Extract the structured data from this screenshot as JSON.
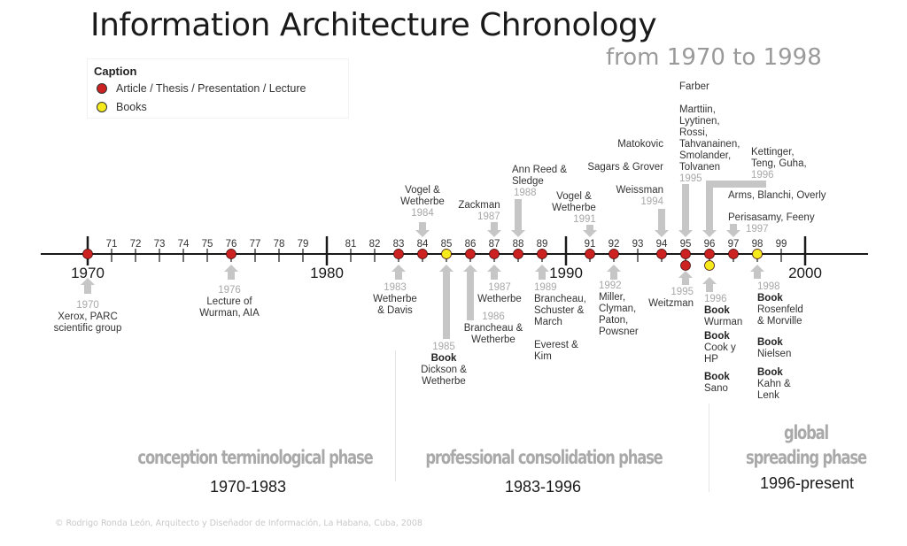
{
  "title": "Information Architecture Chronology",
  "subtitle": "from 1970 to 1998",
  "legend": {
    "title": "Caption",
    "items": [
      {
        "label": "Article / Thesis / Presentation / Lecture",
        "type": "article",
        "color": "#cc2222"
      },
      {
        "label": "Books",
        "type": "book",
        "color": "#f4ea1c"
      }
    ]
  },
  "colors": {
    "article": "#cc2222",
    "book": "#f4ea1c",
    "arrow": "#c6c6c6",
    "axis": "#1a1a1a",
    "year_label": "#a8a8a8"
  },
  "axis": {
    "start": 1970,
    "end": 2000,
    "decade_labels": [
      "1970",
      "1980",
      "1990",
      "2000"
    ],
    "minor_labels": [
      "71",
      "72",
      "73",
      "74",
      "75",
      "76",
      "77",
      "78",
      "79",
      "81",
      "82",
      "83",
      "84",
      "85",
      "86",
      "87",
      "88",
      "89",
      "91",
      "92",
      "93",
      "94",
      "95",
      "96",
      "97",
      "98",
      "99"
    ]
  },
  "markers": [
    {
      "year": 1970,
      "type": "article"
    },
    {
      "year": 1976,
      "type": "article"
    },
    {
      "year": 1983,
      "type": "article"
    },
    {
      "year": 1984,
      "type": "article"
    },
    {
      "year": 1985,
      "type": "book"
    },
    {
      "year": 1986,
      "type": "article"
    },
    {
      "year": 1987,
      "type": "article"
    },
    {
      "year": 1988,
      "type": "article"
    },
    {
      "year": 1989,
      "type": "article"
    },
    {
      "year": 1991,
      "type": "article"
    },
    {
      "year": 1992,
      "type": "article"
    },
    {
      "year": 1994,
      "type": "article"
    },
    {
      "year": 1995,
      "type": "article"
    },
    {
      "year": 1995,
      "type": "article",
      "stacked": true
    },
    {
      "year": 1996,
      "type": "article"
    },
    {
      "year": 1996,
      "type": "book",
      "stacked": true
    },
    {
      "year": 1997,
      "type": "article"
    },
    {
      "year": 1998,
      "type": "book"
    }
  ],
  "events_above": [
    {
      "year_label": "1984",
      "lines": [
        "Vogel &",
        "Wetherbe"
      ]
    },
    {
      "year_label": "1987",
      "lines": [
        "Zackman"
      ]
    },
    {
      "year_label": "1988",
      "lines": [
        "Ann Reed &",
        "Sledge"
      ]
    },
    {
      "year_label": "1991",
      "lines": [
        "Vogel &",
        "Wetherbe"
      ]
    },
    {
      "year_label": "1994",
      "lines": [
        "Matokovic",
        "Sagars & Grover",
        "Weissman"
      ]
    },
    {
      "year_label": "1995",
      "lines": [
        "Farber",
        "Marttiin,",
        "Lyytinen,",
        "Rossi,",
        "Tahvanainen,",
        "Smolander,",
        "Tolvanen"
      ]
    },
    {
      "year_label": "1996",
      "lines": [
        "Kettinger,",
        "Teng, Guha,"
      ]
    },
    {
      "year_label": "1997",
      "lines": [
        "Arms, Blanchi, Overly",
        "Perisasamy, Feeny"
      ]
    }
  ],
  "events_below": [
    {
      "year_label": "1970",
      "lines": [
        "Xerox, PARC",
        "scientific group"
      ]
    },
    {
      "year_label": "1976",
      "lines": [
        "Lecture of",
        "Wurman, AIA"
      ]
    },
    {
      "year_label": "1983",
      "lines": [
        "Wetherbe",
        "& Davis"
      ]
    },
    {
      "year_label": "1985",
      "book": "Book",
      "lines": [
        "Dickson &",
        "Wetherbe"
      ]
    },
    {
      "year_label": "1986",
      "lines": [
        "Brancheau &",
        "Wetherbe"
      ]
    },
    {
      "year_label": "1987",
      "lines": [
        "Wetherbe"
      ]
    },
    {
      "year_label": "1989",
      "lines": [
        "Brancheau,",
        "Schuster &",
        "March",
        "Everest &",
        "Kim"
      ]
    },
    {
      "year_label": "1992",
      "lines": [
        "Miller,",
        "Clyman,",
        "Paton,",
        "Powsner"
      ]
    },
    {
      "year_label": "1995",
      "lines": [
        "Weitzman"
      ]
    },
    {
      "year_label": "1996",
      "books": [
        {
          "book": "Book",
          "lines": [
            "Wurman"
          ]
        },
        {
          "book": "Book",
          "lines": [
            "Cook y",
            "HP"
          ]
        },
        {
          "book": "Book",
          "lines": [
            "Sano"
          ]
        }
      ]
    },
    {
      "year_label": "1998",
      "books": [
        {
          "book": "Book",
          "lines": [
            "Rosenfeld",
            "& Morville"
          ]
        },
        {
          "book": "Book",
          "lines": [
            "Nielsen"
          ]
        },
        {
          "book": "Book",
          "lines": [
            "Kahn &",
            "Lenk"
          ]
        }
      ]
    }
  ],
  "phases": [
    {
      "name": "conception terminological phase",
      "range": "1970-1983"
    },
    {
      "name": "professional consolidation phase",
      "range": "1983-1996"
    },
    {
      "name_lines": [
        "global",
        "spreading phase"
      ],
      "range": "1996-present"
    }
  ],
  "footer": "© Rodrigo Ronda León, Arquitecto y Diseñador de Información, La Habana, Cuba, 2008"
}
